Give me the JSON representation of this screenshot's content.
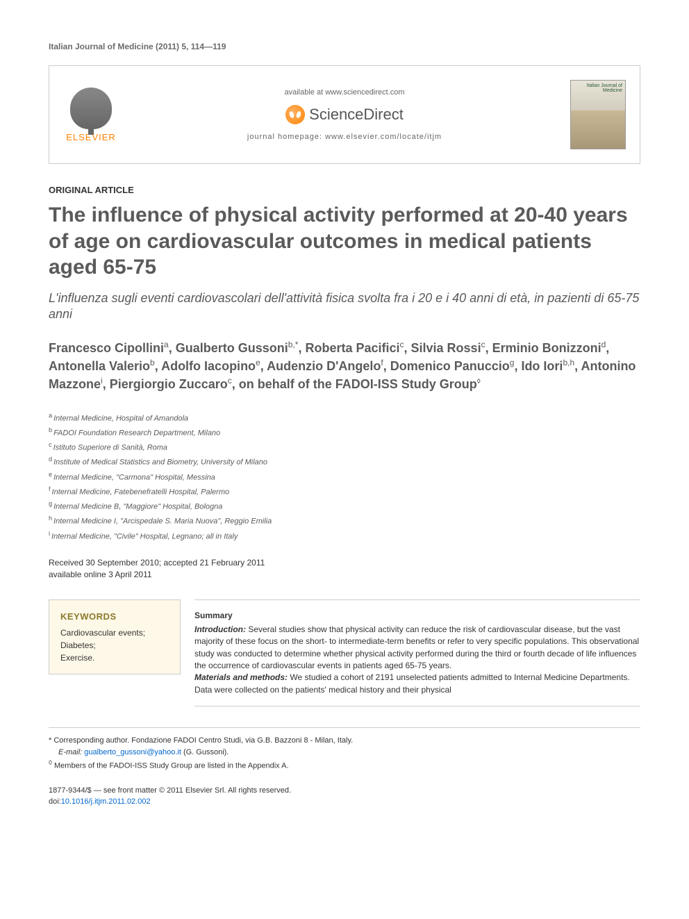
{
  "journal_ref": "Italian Journal of Medicine (2011) 5, 114—119",
  "header": {
    "elsevier": "ELSEVIER",
    "available_at": "available at www.sciencedirect.com",
    "sciencedirect": "ScienceDirect",
    "homepage": "journal homepage: www.elsevier.com/locate/itjm",
    "cover_title": "Italian Journal of Medicine"
  },
  "article_type": "ORIGINAL ARTICLE",
  "title": "The influence of physical activity performed at 20-40 years of age on cardiovascular outcomes in medical patients aged 65-75",
  "subtitle": "L'influenza sugli eventi cardiovascolari dell'attività fisica svolta fra i 20 e i 40 anni di età, in pazienti di 65-75 anni",
  "authors": [
    {
      "name": "Francesco Cipollini",
      "sup": "a"
    },
    {
      "name": "Gualberto Gussoni",
      "sup": "b,*"
    },
    {
      "name": "Roberta Pacifici",
      "sup": "c"
    },
    {
      "name": "Silvia Rossi",
      "sup": "c"
    },
    {
      "name": "Erminio Bonizzoni",
      "sup": "d"
    },
    {
      "name": "Antonella Valerio",
      "sup": "b"
    },
    {
      "name": "Adolfo Iacopino",
      "sup": "e"
    },
    {
      "name": "Audenzio D'Angelo",
      "sup": "f"
    },
    {
      "name": "Domenico Panuccio",
      "sup": "g"
    },
    {
      "name": "Ido Iori",
      "sup": "b,h"
    },
    {
      "name": "Antonino Mazzone",
      "sup": "i"
    },
    {
      "name": "Piergiorgio Zuccaro",
      "sup": "c"
    }
  ],
  "on_behalf": ", on behalf of the FADOI-ISS Study Group",
  "on_behalf_mark": "◊",
  "affiliations": [
    {
      "sup": "a",
      "text": "Internal Medicine, Hospital of Amandola"
    },
    {
      "sup": "b",
      "text": "FADOI Foundation Research Department, Milano"
    },
    {
      "sup": "c",
      "text": "Istituto Superiore di Sanità, Roma"
    },
    {
      "sup": "d",
      "text": "Institute of Medical Statistics and Biometry, University of Milano"
    },
    {
      "sup": "e",
      "text": "Internal Medicine, \"Carmona\" Hospital, Messina"
    },
    {
      "sup": "f",
      "text": "Internal Medicine, Fatebenefratelli Hospital, Palermo"
    },
    {
      "sup": "g",
      "text": "Internal Medicine B, \"Maggiore\" Hospital, Bologna"
    },
    {
      "sup": "h",
      "text": "Internal Medicine I, \"Arcispedale S. Maria Nuova\", Reggio Emilia"
    },
    {
      "sup": "i",
      "text": "Internal Medicine, \"Civile\" Hospital, Legnano; all in Italy"
    }
  ],
  "dates": {
    "received": "Received 30 September 2010; accepted 21 February 2011",
    "online": "available online 3 April 2011"
  },
  "keywords": {
    "heading": "KEYWORDS",
    "items": "Cardiovascular events;\nDiabetes;\nExercise."
  },
  "summary": {
    "heading": "Summary",
    "intro_label": "Introduction:",
    "intro_text": " Several studies show that physical activity can reduce the risk of cardiovascular disease, but the vast majority of these focus on the short- to intermediate-term benefits or refer to very specific populations. This observational study was conducted to determine whether physical activity performed during the third or fourth decade of life influences the occurrence of cardiovascular events in patients aged 65-75 years.",
    "methods_label": "Materials and methods:",
    "methods_text": " We studied a cohort of 2191 unselected patients admitted to Internal Medicine Departments. Data were collected on the patients' medical history and their physical"
  },
  "footnotes": {
    "corr_mark": "*",
    "corr_text": " Corresponding author. Fondazione FADOI Centro Studi, via G.B. Bazzoni 8 - Milan, Italy.",
    "email_label": "E-mail:",
    "email": "gualberto_gussoni@yahoo.it",
    "email_attr": " (G. Gussoni).",
    "diamond_mark": "◊",
    "diamond_text": " Members of the FADOI-ISS Study Group are listed in the Appendix A."
  },
  "copyright": {
    "issn": "1877-9344/$ — see front matter © 2011 Elsevier Srl. All rights reserved.",
    "doi_label": "doi:",
    "doi": "10.1016/j.itjm.2011.02.002"
  }
}
